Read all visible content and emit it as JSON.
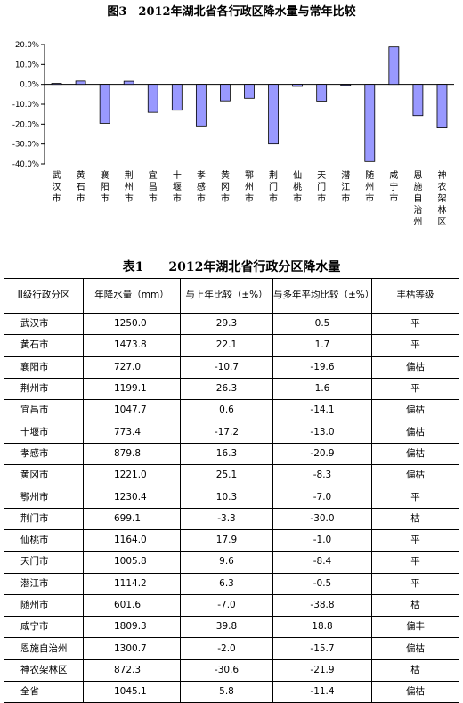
{
  "figure": {
    "title": "图3　2012年湖北省各行政区降水量与常年比较"
  },
  "chart_data": {
    "type": "bar",
    "categories": [
      "武汉市",
      "黄石市",
      "襄阳市",
      "荆州市",
      "宜昌市",
      "十堰市",
      "孝感市",
      "黄冈市",
      "鄂州市",
      "荆门市",
      "仙桃市",
      "天门市",
      "潜江市",
      "随州市",
      "咸宁市",
      "恩施自治州",
      "神农架林区"
    ],
    "values": [
      0.5,
      1.7,
      -19.6,
      1.6,
      -14.1,
      -13.0,
      -20.9,
      -8.3,
      -7.0,
      -30.0,
      -1.0,
      -8.4,
      -0.5,
      -38.8,
      18.8,
      -15.7,
      -21.9
    ],
    "ylim": [
      -40,
      20
    ],
    "yticks": [
      "20.0%",
      "10.0%",
      "0.0%",
      "-10.0%",
      "-20.0%",
      "-30.0%",
      "-40.0%"
    ],
    "grid": false,
    "bar_color": "#9999ff",
    "title": "",
    "xlabel": "",
    "ylabel": ""
  },
  "table": {
    "title": "表1　　2012年湖北省行政分区降水量",
    "headers": [
      "II级行政分区",
      "年降水量（mm）",
      "与上年比较（±%）",
      "与多年平均比较（±%）",
      "丰枯等级"
    ],
    "rows": [
      [
        "武汉市",
        "1250.0",
        "29.3",
        "0.5",
        "平"
      ],
      [
        "黄石市",
        "1473.8",
        "22.1",
        "1.7",
        "平"
      ],
      [
        "襄阳市",
        "727.0",
        "-10.7",
        "-19.6",
        "偏枯"
      ],
      [
        "荆州市",
        "1199.1",
        "26.3",
        "1.6",
        "平"
      ],
      [
        "宜昌市",
        "1047.7",
        "0.6",
        "-14.1",
        "偏枯"
      ],
      [
        "十堰市",
        "773.4",
        "-17.2",
        "-13.0",
        "偏枯"
      ],
      [
        "孝感市",
        "879.8",
        "16.3",
        "-20.9",
        "偏枯"
      ],
      [
        "黄冈市",
        "1221.0",
        "25.1",
        "-8.3",
        "偏枯"
      ],
      [
        "鄂州市",
        "1230.4",
        "10.3",
        "-7.0",
        "平"
      ],
      [
        "荆门市",
        "699.1",
        "-3.3",
        "-30.0",
        "枯"
      ],
      [
        "仙桃市",
        "1164.0",
        "17.9",
        "-1.0",
        "平"
      ],
      [
        "天门市",
        "1005.8",
        "9.6",
        "-8.4",
        "平"
      ],
      [
        "潜江市",
        "1114.2",
        "6.3",
        "-0.5",
        "平"
      ],
      [
        "随州市",
        "601.6",
        "-7.0",
        "-38.8",
        "枯"
      ],
      [
        "咸宁市",
        "1809.3",
        "39.8",
        "18.8",
        "偏丰"
      ],
      [
        "恩施自治州",
        "1300.7",
        "-2.0",
        "-15.7",
        "偏枯"
      ],
      [
        "神农架林区",
        "872.3",
        "-30.6",
        "-21.9",
        "枯"
      ],
      [
        "全省",
        "1045.1",
        "5.8",
        "-11.4",
        "偏枯"
      ]
    ]
  }
}
